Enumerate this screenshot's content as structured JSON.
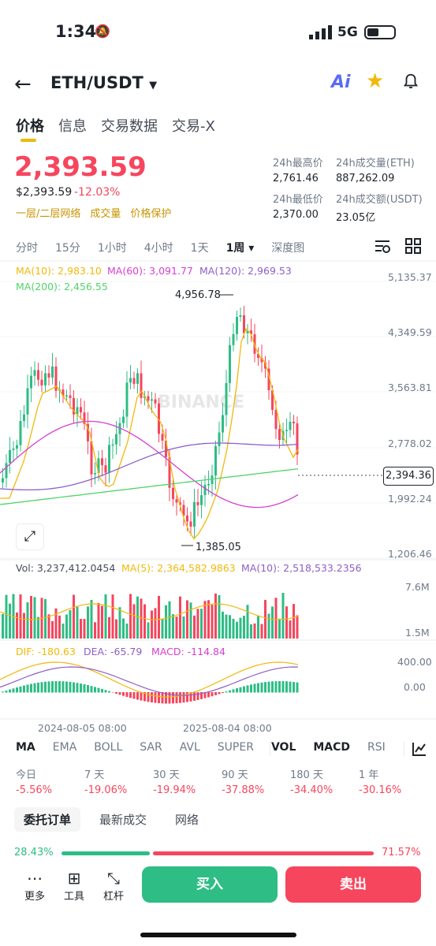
{
  "status": {
    "time": "1:34",
    "network": "5G"
  },
  "header": {
    "pair": "ETH/USDT",
    "ai_label": "Ai"
  },
  "tabs": [
    "价格",
    "信息",
    "交易数据",
    "交易-X"
  ],
  "price": {
    "last": "2,393.59",
    "usd": "$2,393.59",
    "change": "-12.03%",
    "links": [
      "一层/二层网络",
      "成交量",
      "价格保护"
    ],
    "stats": {
      "high_label": "24h最高价",
      "high": "2,761.46",
      "vol_eth_label": "24h成交量(ETH)",
      "vol_eth": "887,262.09",
      "low_label": "24h最低价",
      "low": "2,370.00",
      "vol_usdt_label": "24h成交额(USDT)",
      "vol_usdt": "23.05亿"
    }
  },
  "timeframes": [
    "分时",
    "15分",
    "1小时",
    "4小时",
    "1天",
    "1周",
    "深度图"
  ],
  "chart": {
    "ma_legend": {
      "ma10": "MA(10): 2,983.10",
      "ma60": "MA(60): 3,091.77",
      "ma120": "MA(120): 2,969.53",
      "ma200": "MA(200): 2,456.55"
    },
    "y_ticks": [
      "5,135.37",
      "4,349.59",
      "3,563.81",
      "2,778.02",
      "1,992.24",
      "1,206.46"
    ],
    "high_marker": "4,956.78",
    "low_marker": "1,385.05",
    "current_price": "2,394.36",
    "watermark": "BINANCE",
    "vol_legend": {
      "vol": "Vol: 3,237,412.0454",
      "ma5": "MA(5): 2,364,582.9863",
      "ma10": "MA(10): 2,518,533.2356"
    },
    "vol_ticks": [
      "7.6M",
      "1.5M"
    ],
    "macd_legend": {
      "dif": "DIF: -180.63",
      "dea": "DEA: -65.79",
      "macd": "MACD: -114.84"
    },
    "macd_ticks": [
      "400.00",
      "0.00"
    ],
    "x_ticks": [
      "2024-08-05 08:00",
      "2025-08-04 08:00"
    ],
    "colors": {
      "up": "#2ebd85",
      "down": "#f6465d",
      "ma10": "#f0b90b",
      "ma60": "#d63fd1",
      "ma120": "#8e5fc7",
      "ma200": "#4fd36c"
    }
  },
  "indicators": [
    "MA",
    "EMA",
    "BOLL",
    "SAR",
    "AVL",
    "SUPER",
    "VOL",
    "MACD",
    "RSI"
  ],
  "performance": [
    {
      "name": "今日",
      "value": "-5.56%"
    },
    {
      "name": "7 天",
      "value": "-19.06%"
    },
    {
      "name": "30 天",
      "value": "-19.94%"
    },
    {
      "name": "90 天",
      "value": "-37.88%"
    },
    {
      "name": "180 天",
      "value": "-34.40%"
    },
    {
      "name": "1 年",
      "value": "-30.16%"
    }
  ],
  "order_tabs": [
    "委托订单",
    "最新成交",
    "网络"
  ],
  "ratio": {
    "buy": "28.43%",
    "sell": "71.57%",
    "buy_fraction": 0.2843
  },
  "bottom": {
    "more": "更多",
    "tools": "工具",
    "leverage": "杠杆",
    "buy": "买入",
    "sell": "卖出"
  }
}
